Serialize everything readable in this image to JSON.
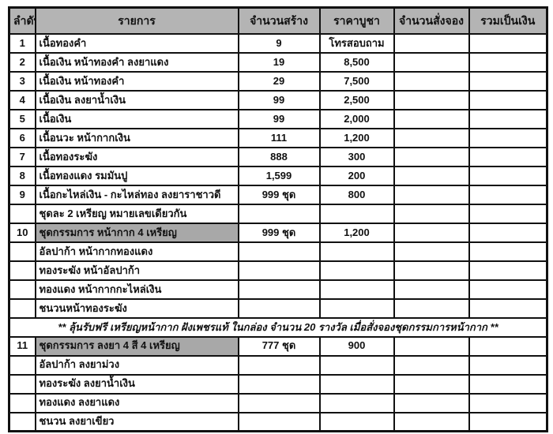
{
  "colors": {
    "header_bg": "#b4b4b4",
    "highlight_bg": "#a8a8a8",
    "border": "#111111",
    "page_bg": "#ffffff"
  },
  "table": {
    "headers": [
      "ลำดับ",
      "รายการ",
      "จำนวนสร้าง",
      "ราคาบูชา",
      "จำนวนสั่งจอง",
      "รวมเป็นเงิน"
    ],
    "rows": [
      {
        "no": "1",
        "item": "เนื้อทองคำ",
        "made": "9",
        "price": "โทรสอบถาม",
        "ordered": "",
        "total": "",
        "highlight": false
      },
      {
        "no": "2",
        "item": "เนื้อเงิน หน้าทองคำ  ลงยาแดง",
        "made": "19",
        "price": "8,500",
        "ordered": "",
        "total": "",
        "highlight": false
      },
      {
        "no": "3",
        "item": "เนื้อเงิน หน้าทองคำ",
        "made": "29",
        "price": "7,500",
        "ordered": "",
        "total": "",
        "highlight": false
      },
      {
        "no": "4",
        "item": "เนื้อเงิน ลงยาน้ำเงิน",
        "made": "99",
        "price": "2,500",
        "ordered": "",
        "total": "",
        "highlight": false
      },
      {
        "no": "5",
        "item": "เนื้อเงิน",
        "made": "99",
        "price": "2,000",
        "ordered": "",
        "total": "",
        "highlight": false
      },
      {
        "no": "6",
        "item": "เนื้อนวะ หน้ากากเงิน",
        "made": "111",
        "price": "1,200",
        "ordered": "",
        "total": "",
        "highlight": false
      },
      {
        "no": "7",
        "item": "เนื้อทองระฆัง",
        "made": "888",
        "price": "300",
        "ordered": "",
        "total": "",
        "highlight": false
      },
      {
        "no": "8",
        "item": "เนื้อทองแดง รมมันปู",
        "made": "1,599",
        "price": "200",
        "ordered": "",
        "total": "",
        "highlight": false
      },
      {
        "no": "9",
        "item": "เนื้อกะไหล่เงิน - กะไหล่ทอง ลงยาราชาวดี",
        "made": "999  ชุด",
        "price": "800",
        "ordered": "",
        "total": "",
        "highlight": false
      },
      {
        "no": "",
        "item": "ชุดละ 2 เหรียญ  หมายเลขเดียวกัน",
        "made": "",
        "price": "",
        "ordered": "",
        "total": "",
        "highlight": false
      },
      {
        "no": "10",
        "item": "ชุดกรรมการ หน้ากาก  4 เหรียญ",
        "made": "999  ชุด",
        "price": "1,200",
        "ordered": "",
        "total": "",
        "highlight": true
      },
      {
        "no": "",
        "item": "อัลปาก้า หน้ากากทองแดง",
        "made": "",
        "price": "",
        "ordered": "",
        "total": "",
        "highlight": false
      },
      {
        "no": "",
        "item": "ทองระฆัง หน้าอัลปาก้า",
        "made": "",
        "price": "",
        "ordered": "",
        "total": "",
        "highlight": false
      },
      {
        "no": "",
        "item": "ทองแดง หน้ากากกะไหล่เงิน",
        "made": "",
        "price": "",
        "ordered": "",
        "total": "",
        "highlight": false
      },
      {
        "no": "",
        "item": "ชนวนหน้าทองระฆัง",
        "made": "",
        "price": "",
        "ordered": "",
        "total": "",
        "highlight": false
      },
      {
        "merged": true,
        "text": "** ลุ้นรับฟรี เหรียญหน้ากาก  ฝังเพชรแท้  ในกล่อง  จำนวน 20 รางวัล เมื่อสั่งจองชุดกรรมการหน้ากาก **"
      },
      {
        "no": "11",
        "item": "ชุดกรรมการ ลงยา 4 สี 4 เหรียญ",
        "made": "777  ชุด",
        "price": "900",
        "ordered": "",
        "total": "",
        "highlight": true
      },
      {
        "no": "",
        "item": "อัลปาก้า ลงยาม่วง",
        "made": "",
        "price": "",
        "ordered": "",
        "total": "",
        "highlight": false
      },
      {
        "no": "",
        "item": "ทองระฆัง ลงยาน้ำเงิน",
        "made": "",
        "price": "",
        "ordered": "",
        "total": "",
        "highlight": false
      },
      {
        "no": "",
        "item": "ทองแดง ลงยาแดง",
        "made": "",
        "price": "",
        "ordered": "",
        "total": "",
        "highlight": false
      },
      {
        "no": "",
        "item": "ชนวน ลงยาเขียว",
        "made": "",
        "price": "",
        "ordered": "",
        "total": "",
        "highlight": false
      }
    ]
  }
}
